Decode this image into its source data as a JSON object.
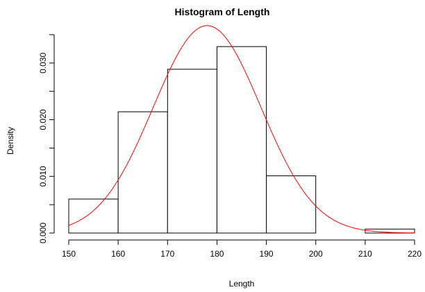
{
  "chart_data": {
    "type": "bar",
    "title": "Histogram of Length",
    "xlabel": "Length",
    "ylabel": "Density",
    "xlim": [
      150,
      220
    ],
    "ylim": [
      0,
      0.035
    ],
    "x_ticks": [
      "150",
      "160",
      "170",
      "180",
      "190",
      "200",
      "210",
      "220"
    ],
    "y_ticks": [
      "0.000",
      "0.010",
      "0.020",
      "0.030"
    ],
    "bins": [
      {
        "start": 150,
        "end": 160,
        "density": 0.006
      },
      {
        "start": 160,
        "end": 170,
        "density": 0.0214
      },
      {
        "start": 170,
        "end": 180,
        "density": 0.0289
      },
      {
        "start": 180,
        "end": 190,
        "density": 0.0329
      },
      {
        "start": 190,
        "end": 200,
        "density": 0.0101
      },
      {
        "start": 200,
        "end": 210,
        "density": 0.0
      },
      {
        "start": 210,
        "end": 220,
        "density": 0.0007
      }
    ],
    "density_curve": {
      "distribution": "normal",
      "mean": 178,
      "sd": 10.9,
      "color": "#ff0000"
    },
    "bar_fill": "#ffffff",
    "bar_stroke": "#000000",
    "grid": false
  }
}
